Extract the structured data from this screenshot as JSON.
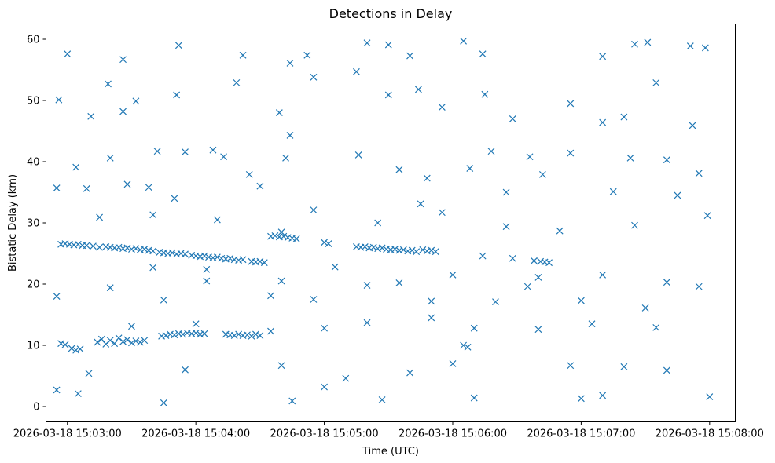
{
  "chart_data": {
    "type": "scatter",
    "title": "Detections in Delay",
    "xlabel": "Time (UTC)",
    "ylabel": "Bistatic Delay (km)",
    "marker": "x",
    "color": "#1f77b4",
    "grid": false,
    "legend": "none",
    "xlim": [
      "2026-03-18 15:02:50",
      "2026-03-18 15:08:12"
    ],
    "ylim": [
      -2.5,
      62.5
    ],
    "x_ticks": [
      "2026-03-18 15:03:00",
      "2026-03-18 15:04:00",
      "2026-03-18 15:05:00",
      "2026-03-18 15:06:00",
      "2026-03-18 15:07:00",
      "2026-03-18 15:08:00"
    ],
    "y_ticks": [
      0,
      10,
      20,
      30,
      40,
      50,
      60
    ],
    "series": [
      {
        "points": [
          [
            "2026-03-18 15:02:57",
            26.5
          ],
          [
            "2026-03-18 15:02:59",
            26.6
          ],
          [
            "2026-03-18 15:03:01",
            26.5
          ],
          [
            "2026-03-18 15:03:03",
            26.4
          ],
          [
            "2026-03-18 15:03:05",
            26.5
          ],
          [
            "2026-03-18 15:03:07",
            26.3
          ],
          [
            "2026-03-18 15:03:09",
            26.3
          ],
          [
            "2026-03-18 15:03:12",
            26.2
          ],
          [
            "2026-03-18 15:03:15",
            26.0
          ],
          [
            "2026-03-18 15:03:18",
            26.1
          ],
          [
            "2026-03-18 15:03:20",
            26.0
          ],
          [
            "2026-03-18 15:03:22",
            25.9
          ],
          [
            "2026-03-18 15:03:24",
            26.0
          ],
          [
            "2026-03-18 15:03:26",
            25.8
          ],
          [
            "2026-03-18 15:03:28",
            25.9
          ],
          [
            "2026-03-18 15:03:30",
            25.7
          ],
          [
            "2026-03-18 15:03:32",
            25.8
          ],
          [
            "2026-03-18 15:03:34",
            25.6
          ],
          [
            "2026-03-18 15:03:36",
            25.7
          ],
          [
            "2026-03-18 15:03:38",
            25.5
          ],
          [
            "2026-03-18 15:03:40",
            25.4
          ],
          [
            "2026-03-18 15:03:43",
            25.2
          ],
          [
            "2026-03-18 15:03:45",
            25.1
          ],
          [
            "2026-03-18 15:03:47",
            25.0
          ],
          [
            "2026-03-18 15:03:49",
            25.1
          ],
          [
            "2026-03-18 15:03:51",
            24.9
          ],
          [
            "2026-03-18 15:03:53",
            25.0
          ],
          [
            "2026-03-18 15:03:55",
            24.9
          ],
          [
            "2026-03-18 15:03:58",
            24.7
          ],
          [
            "2026-03-18 15:04:00",
            24.6
          ],
          [
            "2026-03-18 15:04:02",
            24.5
          ],
          [
            "2026-03-18 15:04:04",
            24.6
          ],
          [
            "2026-03-18 15:04:06",
            24.4
          ],
          [
            "2026-03-18 15:04:08",
            24.3
          ],
          [
            "2026-03-18 15:04:10",
            24.4
          ],
          [
            "2026-03-18 15:04:12",
            24.2
          ],
          [
            "2026-03-18 15:04:14",
            24.1
          ],
          [
            "2026-03-18 15:04:16",
            24.2
          ],
          [
            "2026-03-18 15:04:18",
            24.0
          ],
          [
            "2026-03-18 15:04:20",
            23.9
          ],
          [
            "2026-03-18 15:04:22",
            24.0
          ],
          [
            "2026-03-18 15:04:26",
            23.7
          ],
          [
            "2026-03-18 15:04:28",
            23.6
          ],
          [
            "2026-03-18 15:04:30",
            23.7
          ],
          [
            "2026-03-18 15:04:32",
            23.5
          ],
          [
            "2026-03-18 15:04:35",
            27.8
          ],
          [
            "2026-03-18 15:04:37",
            27.9
          ],
          [
            "2026-03-18 15:04:39",
            27.7
          ],
          [
            "2026-03-18 15:04:41",
            27.8
          ],
          [
            "2026-03-18 15:04:43",
            27.6
          ],
          [
            "2026-03-18 15:04:45",
            27.5
          ],
          [
            "2026-03-18 15:04:47",
            27.4
          ],
          [
            "2026-03-18 15:05:00",
            26.8
          ],
          [
            "2026-03-18 15:05:02",
            26.6
          ],
          [
            "2026-03-18 15:05:15",
            26.1
          ],
          [
            "2026-03-18 15:05:17",
            26.0
          ],
          [
            "2026-03-18 15:05:19",
            26.1
          ],
          [
            "2026-03-18 15:05:21",
            25.9
          ],
          [
            "2026-03-18 15:05:23",
            26.0
          ],
          [
            "2026-03-18 15:05:25",
            25.8
          ],
          [
            "2026-03-18 15:05:27",
            25.9
          ],
          [
            "2026-03-18 15:05:29",
            25.7
          ],
          [
            "2026-03-18 15:05:31",
            25.6
          ],
          [
            "2026-03-18 15:05:33",
            25.7
          ],
          [
            "2026-03-18 15:05:35",
            25.5
          ],
          [
            "2026-03-18 15:05:37",
            25.6
          ],
          [
            "2026-03-18 15:05:39",
            25.4
          ],
          [
            "2026-03-18 15:05:41",
            25.5
          ],
          [
            "2026-03-18 15:05:43",
            25.3
          ],
          [
            "2026-03-18 15:05:46",
            25.6
          ],
          [
            "2026-03-18 15:05:48",
            25.4
          ],
          [
            "2026-03-18 15:05:50",
            25.5
          ],
          [
            "2026-03-18 15:05:52",
            25.3
          ],
          [
            "2026-03-18 15:06:14",
            24.6
          ],
          [
            "2026-03-18 15:06:28",
            24.2
          ],
          [
            "2026-03-18 15:06:38",
            23.8
          ],
          [
            "2026-03-18 15:06:41",
            23.7
          ],
          [
            "2026-03-18 15:06:43",
            23.6
          ],
          [
            "2026-03-18 15:06:45",
            23.5
          ],
          [
            "2026-03-18 15:03:14",
            10.5
          ],
          [
            "2026-03-18 15:03:16",
            11.0
          ],
          [
            "2026-03-18 15:03:18",
            10.2
          ],
          [
            "2026-03-18 15:03:20",
            10.8
          ],
          [
            "2026-03-18 15:03:22",
            10.3
          ],
          [
            "2026-03-18 15:03:24",
            11.2
          ],
          [
            "2026-03-18 15:03:26",
            10.6
          ],
          [
            "2026-03-18 15:03:28",
            10.9
          ],
          [
            "2026-03-18 15:03:30",
            10.4
          ],
          [
            "2026-03-18 15:03:32",
            10.7
          ],
          [
            "2026-03-18 15:03:34",
            10.5
          ],
          [
            "2026-03-18 15:03:36",
            10.8
          ],
          [
            "2026-03-18 15:03:44",
            11.5
          ],
          [
            "2026-03-18 15:03:46",
            11.6
          ],
          [
            "2026-03-18 15:03:48",
            11.8
          ],
          [
            "2026-03-18 15:03:50",
            11.7
          ],
          [
            "2026-03-18 15:03:52",
            11.9
          ],
          [
            "2026-03-18 15:03:54",
            11.8
          ],
          [
            "2026-03-18 15:03:56",
            12.0
          ],
          [
            "2026-03-18 15:03:58",
            11.9
          ],
          [
            "2026-03-18 15:04:00",
            12.0
          ],
          [
            "2026-03-18 15:04:02",
            11.8
          ],
          [
            "2026-03-18 15:04:04",
            11.9
          ],
          [
            "2026-03-18 15:04:14",
            11.8
          ],
          [
            "2026-03-18 15:04:16",
            11.7
          ],
          [
            "2026-03-18 15:04:18",
            11.6
          ],
          [
            "2026-03-18 15:04:20",
            11.8
          ],
          [
            "2026-03-18 15:04:22",
            11.6
          ],
          [
            "2026-03-18 15:04:24",
            11.7
          ],
          [
            "2026-03-18 15:04:26",
            11.5
          ],
          [
            "2026-03-18 15:04:28",
            11.8
          ],
          [
            "2026-03-18 15:04:30",
            11.6
          ],
          [
            "2026-03-18 15:02:57",
            10.3
          ],
          [
            "2026-03-18 15:02:59",
            10.1
          ],
          [
            "2026-03-18 15:03:02",
            9.5
          ],
          [
            "2026-03-18 15:03:04",
            9.2
          ],
          [
            "2026-03-18 15:03:06",
            9.4
          ],
          [
            "2026-03-18 15:06:05",
            10.0
          ],
          [
            "2026-03-18 15:06:07",
            9.7
          ],
          [
            "2026-03-18 15:02:55",
            35.7
          ],
          [
            "2026-03-18 15:03:04",
            39.1
          ],
          [
            "2026-03-18 15:03:09",
            35.6
          ],
          [
            "2026-03-18 15:03:20",
            40.6
          ],
          [
            "2026-03-18 15:03:28",
            36.3
          ],
          [
            "2026-03-18 15:03:38",
            35.8
          ],
          [
            "2026-03-18 15:03:42",
            41.7
          ],
          [
            "2026-03-18 15:03:55",
            41.6
          ],
          [
            "2026-03-18 15:04:08",
            41.9
          ],
          [
            "2026-03-18 15:04:13",
            40.8
          ],
          [
            "2026-03-18 15:04:25",
            37.9
          ],
          [
            "2026-03-18 15:04:42",
            40.6
          ],
          [
            "2026-03-18 15:04:44",
            44.3
          ],
          [
            "2026-03-18 15:05:16",
            41.1
          ],
          [
            "2026-03-18 15:05:35",
            38.7
          ],
          [
            "2026-03-18 15:05:48",
            37.3
          ],
          [
            "2026-03-18 15:06:08",
            38.9
          ],
          [
            "2026-03-18 15:06:18",
            41.7
          ],
          [
            "2026-03-18 15:06:36",
            40.8
          ],
          [
            "2026-03-18 15:06:42",
            37.9
          ],
          [
            "2026-03-18 15:06:55",
            41.4
          ],
          [
            "2026-03-18 15:07:23",
            40.6
          ],
          [
            "2026-03-18 15:07:40",
            40.3
          ],
          [
            "2026-03-18 15:07:55",
            38.1
          ],
          [
            "2026-03-18 15:02:56",
            50.1
          ],
          [
            "2026-03-18 15:03:11",
            47.4
          ],
          [
            "2026-03-18 15:03:19",
            52.7
          ],
          [
            "2026-03-18 15:03:26",
            48.2
          ],
          [
            "2026-03-18 15:03:32",
            49.9
          ],
          [
            "2026-03-18 15:03:51",
            50.9
          ],
          [
            "2026-03-18 15:04:19",
            52.9
          ],
          [
            "2026-03-18 15:04:39",
            48.0
          ],
          [
            "2026-03-18 15:04:55",
            53.8
          ],
          [
            "2026-03-18 15:05:15",
            54.7
          ],
          [
            "2026-03-18 15:05:30",
            50.9
          ],
          [
            "2026-03-18 15:05:44",
            51.8
          ],
          [
            "2026-03-18 15:05:55",
            48.9
          ],
          [
            "2026-03-18 15:06:15",
            51.0
          ],
          [
            "2026-03-18 15:06:28",
            47.0
          ],
          [
            "2026-03-18 15:06:55",
            49.5
          ],
          [
            "2026-03-18 15:07:10",
            46.4
          ],
          [
            "2026-03-18 15:07:20",
            47.3
          ],
          [
            "2026-03-18 15:07:35",
            52.9
          ],
          [
            "2026-03-18 15:07:52",
            45.9
          ],
          [
            "2026-03-18 15:03:00",
            57.6
          ],
          [
            "2026-03-18 15:03:26",
            56.7
          ],
          [
            "2026-03-18 15:03:52",
            59.0
          ],
          [
            "2026-03-18 15:04:22",
            57.4
          ],
          [
            "2026-03-18 15:04:44",
            56.1
          ],
          [
            "2026-03-18 15:04:52",
            57.4
          ],
          [
            "2026-03-18 15:05:20",
            59.4
          ],
          [
            "2026-03-18 15:05:30",
            59.1
          ],
          [
            "2026-03-18 15:05:40",
            57.3
          ],
          [
            "2026-03-18 15:06:05",
            59.7
          ],
          [
            "2026-03-18 15:06:14",
            57.6
          ],
          [
            "2026-03-18 15:07:10",
            57.2
          ],
          [
            "2026-03-18 15:07:25",
            59.2
          ],
          [
            "2026-03-18 15:07:31",
            59.5
          ],
          [
            "2026-03-18 15:07:51",
            58.9
          ],
          [
            "2026-03-18 15:07:58",
            58.6
          ],
          [
            "2026-03-18 15:02:55",
            18.0
          ],
          [
            "2026-03-18 15:03:20",
            19.4
          ],
          [
            "2026-03-18 15:03:45",
            17.4
          ],
          [
            "2026-03-18 15:04:05",
            20.5
          ],
          [
            "2026-03-18 15:04:35",
            18.1
          ],
          [
            "2026-03-18 15:04:55",
            17.5
          ],
          [
            "2026-03-18 15:05:20",
            19.8
          ],
          [
            "2026-03-18 15:05:50",
            17.2
          ],
          [
            "2026-03-18 15:06:20",
            17.1
          ],
          [
            "2026-03-18 15:06:35",
            19.6
          ],
          [
            "2026-03-18 15:07:00",
            17.3
          ],
          [
            "2026-03-18 15:07:30",
            16.1
          ],
          [
            "2026-03-18 15:07:55",
            19.6
          ],
          [
            "2026-03-18 15:02:55",
            2.7
          ],
          [
            "2026-03-18 15:03:05",
            2.1
          ],
          [
            "2026-03-18 15:03:45",
            0.6
          ],
          [
            "2026-03-18 15:04:45",
            0.9
          ],
          [
            "2026-03-18 15:05:00",
            3.2
          ],
          [
            "2026-03-18 15:05:27",
            1.1
          ],
          [
            "2026-03-18 15:06:10",
            1.4
          ],
          [
            "2026-03-18 15:07:00",
            1.3
          ],
          [
            "2026-03-18 15:07:10",
            1.8
          ],
          [
            "2026-03-18 15:08:00",
            1.6
          ],
          [
            "2026-03-18 15:03:10",
            5.4
          ],
          [
            "2026-03-18 15:03:55",
            6.0
          ],
          [
            "2026-03-18 15:04:40",
            6.7
          ],
          [
            "2026-03-18 15:05:10",
            4.6
          ],
          [
            "2026-03-18 15:05:40",
            5.5
          ],
          [
            "2026-03-18 15:06:00",
            7.0
          ],
          [
            "2026-03-18 15:06:55",
            6.7
          ],
          [
            "2026-03-18 15:07:20",
            6.5
          ],
          [
            "2026-03-18 15:07:40",
            5.9
          ],
          [
            "2026-03-18 15:03:15",
            30.9
          ],
          [
            "2026-03-18 15:03:40",
            31.3
          ],
          [
            "2026-03-18 15:04:10",
            30.5
          ],
          [
            "2026-03-18 15:04:40",
            28.5
          ],
          [
            "2026-03-18 15:04:55",
            32.1
          ],
          [
            "2026-03-18 15:05:25",
            30.0
          ],
          [
            "2026-03-18 15:05:55",
            31.7
          ],
          [
            "2026-03-18 15:06:25",
            29.4
          ],
          [
            "2026-03-18 15:06:50",
            28.7
          ],
          [
            "2026-03-18 15:07:25",
            29.6
          ],
          [
            "2026-03-18 15:07:59",
            31.2
          ],
          [
            "2026-03-18 15:03:40",
            22.7
          ],
          [
            "2026-03-18 15:04:05",
            22.4
          ],
          [
            "2026-03-18 15:04:40",
            20.5
          ],
          [
            "2026-03-18 15:05:05",
            22.8
          ],
          [
            "2026-03-18 15:05:35",
            20.2
          ],
          [
            "2026-03-18 15:06:00",
            21.5
          ],
          [
            "2026-03-18 15:06:40",
            21.1
          ],
          [
            "2026-03-18 15:07:10",
            21.5
          ],
          [
            "2026-03-18 15:07:40",
            20.3
          ],
          [
            "2026-03-18 15:03:30",
            13.1
          ],
          [
            "2026-03-18 15:04:00",
            13.5
          ],
          [
            "2026-03-18 15:04:35",
            12.3
          ],
          [
            "2026-03-18 15:05:00",
            12.8
          ],
          [
            "2026-03-18 15:05:20",
            13.7
          ],
          [
            "2026-03-18 15:05:50",
            14.5
          ],
          [
            "2026-03-18 15:06:10",
            12.8
          ],
          [
            "2026-03-18 15:06:40",
            12.6
          ],
          [
            "2026-03-18 15:07:05",
            13.5
          ],
          [
            "2026-03-18 15:07:35",
            12.9
          ],
          [
            "2026-03-18 15:03:50",
            34.0
          ],
          [
            "2026-03-18 15:04:30",
            36.0
          ],
          [
            "2026-03-18 15:05:45",
            33.1
          ],
          [
            "2026-03-18 15:06:25",
            35.0
          ],
          [
            "2026-03-18 15:07:15",
            35.1
          ],
          [
            "2026-03-18 15:07:45",
            34.5
          ]
        ]
      }
    ]
  }
}
